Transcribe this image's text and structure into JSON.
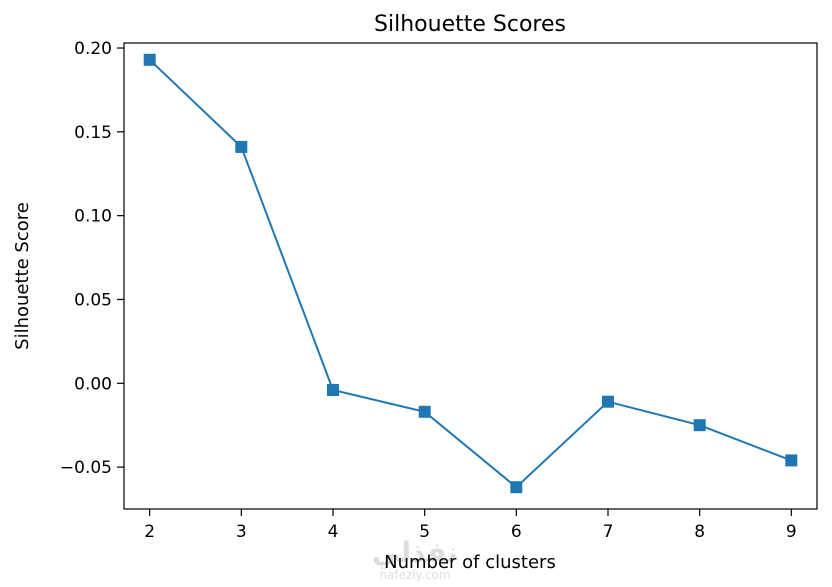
{
  "chart_data": {
    "type": "line",
    "title": "Silhouette Scores",
    "xlabel": "Number of clusters",
    "ylabel": "Silhouette Score",
    "x": [
      2,
      3,
      4,
      5,
      6,
      7,
      8,
      9
    ],
    "y": [
      0.193,
      0.141,
      -0.004,
      -0.017,
      -0.062,
      -0.011,
      -0.025,
      -0.046
    ],
    "xticks": [
      "2",
      "3",
      "4",
      "5",
      "6",
      "7",
      "8",
      "9"
    ],
    "yticks": [
      "0.20",
      "0.15",
      "0.10",
      "0.05",
      "0.00",
      "−0.05"
    ],
    "ytick_values": [
      0.2,
      0.15,
      0.1,
      0.05,
      0.0,
      -0.05
    ],
    "xlim": [
      1.72,
      9.28
    ],
    "ylim": [
      -0.075,
      0.203
    ],
    "marker": "square",
    "grid": false,
    "line_color": "#1f77b4"
  },
  "watermark": {
    "arabic": "نفذلي",
    "latin": "nafezly.com"
  }
}
